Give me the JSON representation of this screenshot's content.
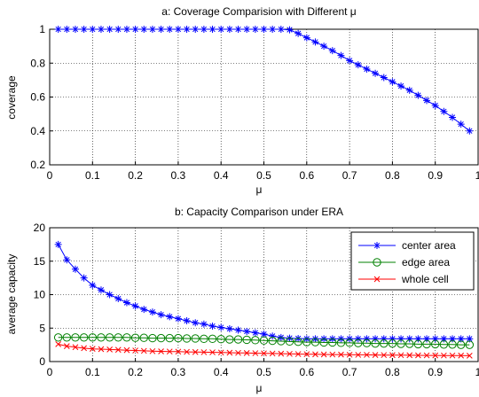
{
  "chart_data": [
    {
      "type": "line",
      "title": "a: Coverage Comparision with Different μ",
      "xlabel": "μ",
      "ylabel": "coverage",
      "xlim": [
        0,
        1
      ],
      "ylim": [
        0.2,
        1
      ],
      "xticks": [
        "0",
        "0.1",
        "0.2",
        "0.3",
        "0.4",
        "0.5",
        "0.6",
        "0.7",
        "0.8",
        "0.9",
        "1"
      ],
      "yticks": [
        "0.2",
        "0.4",
        "0.6",
        "0.8",
        "1"
      ],
      "xtick_values": [
        0,
        0.1,
        0.2,
        0.3,
        0.4,
        0.5,
        0.6,
        0.7,
        0.8,
        0.9,
        1
      ],
      "ytick_values": [
        0.2,
        0.4,
        0.6,
        0.8,
        1
      ],
      "grid": true,
      "series": [
        {
          "color": "#0000ff",
          "marker": "asterisk",
          "x": [
            0.02,
            0.04,
            0.06,
            0.08,
            0.1,
            0.12,
            0.14,
            0.16,
            0.18,
            0.2,
            0.22,
            0.24,
            0.26,
            0.28,
            0.3,
            0.32,
            0.34,
            0.36,
            0.38,
            0.4,
            0.42,
            0.44,
            0.46,
            0.48,
            0.5,
            0.52,
            0.54,
            0.56,
            0.58,
            0.6,
            0.62,
            0.64,
            0.66,
            0.68,
            0.7,
            0.72,
            0.74,
            0.76,
            0.78,
            0.8,
            0.82,
            0.84,
            0.86,
            0.88,
            0.9,
            0.92,
            0.94,
            0.96,
            0.98
          ],
          "y": [
            1,
            1,
            1,
            1,
            1,
            1,
            1,
            1,
            1,
            1,
            1,
            1,
            1,
            1,
            1,
            1,
            1,
            1,
            1,
            1,
            1,
            1,
            1,
            1,
            1,
            1,
            1,
            0.997,
            0.975,
            0.95,
            0.925,
            0.9,
            0.874,
            0.845,
            0.815,
            0.79,
            0.765,
            0.74,
            0.715,
            0.69,
            0.665,
            0.64,
            0.61,
            0.58,
            0.55,
            0.515,
            0.48,
            0.44,
            0.4
          ]
        }
      ]
    },
    {
      "type": "line",
      "title": "b: Capacity Comparison under ERA",
      "xlabel": "μ",
      "ylabel": "average capacity",
      "xlim": [
        0,
        1
      ],
      "ylim": [
        0,
        20
      ],
      "xticks": [
        "0",
        "0.1",
        "0.2",
        "0.3",
        "0.4",
        "0.5",
        "0.6",
        "0.7",
        "0.8",
        "0.9",
        "1"
      ],
      "yticks": [
        "0",
        "5",
        "10",
        "15",
        "20"
      ],
      "xtick_values": [
        0,
        0.1,
        0.2,
        0.3,
        0.4,
        0.5,
        0.6,
        0.7,
        0.8,
        0.9,
        1
      ],
      "ytick_values": [
        0,
        5,
        10,
        15,
        20
      ],
      "grid": true,
      "legend_position": "top-right",
      "series": [
        {
          "name": "center area",
          "color": "#0000ff",
          "marker": "asterisk",
          "x": [
            0.02,
            0.04,
            0.06,
            0.08,
            0.1,
            0.12,
            0.14,
            0.16,
            0.18,
            0.2,
            0.22,
            0.24,
            0.26,
            0.28,
            0.3,
            0.32,
            0.34,
            0.36,
            0.38,
            0.4,
            0.42,
            0.44,
            0.46,
            0.48,
            0.5,
            0.52,
            0.54,
            0.56,
            0.58,
            0.6,
            0.62,
            0.64,
            0.66,
            0.68,
            0.7,
            0.72,
            0.74,
            0.76,
            0.78,
            0.8,
            0.82,
            0.84,
            0.86,
            0.88,
            0.9,
            0.92,
            0.94,
            0.96,
            0.98
          ],
          "y": [
            17.5,
            15.2,
            13.8,
            12.5,
            11.4,
            10.7,
            10.0,
            9.4,
            8.8,
            8.3,
            7.8,
            7.4,
            7.0,
            6.7,
            6.4,
            6.1,
            5.8,
            5.6,
            5.3,
            5.1,
            4.9,
            4.7,
            4.5,
            4.3,
            4.1,
            3.8,
            3.6,
            3.5,
            3.45,
            3.4,
            3.4,
            3.4,
            3.4,
            3.4,
            3.4,
            3.4,
            3.4,
            3.4,
            3.4,
            3.4,
            3.4,
            3.4,
            3.4,
            3.4,
            3.4,
            3.4,
            3.4,
            3.4,
            3.4
          ]
        },
        {
          "name": "edge area",
          "color": "#008000",
          "marker": "circle",
          "x": [
            0.02,
            0.04,
            0.06,
            0.08,
            0.1,
            0.12,
            0.14,
            0.16,
            0.18,
            0.2,
            0.22,
            0.24,
            0.26,
            0.28,
            0.3,
            0.32,
            0.34,
            0.36,
            0.38,
            0.4,
            0.42,
            0.44,
            0.46,
            0.48,
            0.5,
            0.52,
            0.54,
            0.56,
            0.58,
            0.6,
            0.62,
            0.64,
            0.66,
            0.68,
            0.7,
            0.72,
            0.74,
            0.76,
            0.78,
            0.8,
            0.82,
            0.84,
            0.86,
            0.88,
            0.9,
            0.92,
            0.94,
            0.96,
            0.98
          ],
          "y": [
            3.6,
            3.6,
            3.6,
            3.6,
            3.6,
            3.6,
            3.6,
            3.6,
            3.6,
            3.55,
            3.55,
            3.5,
            3.5,
            3.5,
            3.5,
            3.45,
            3.45,
            3.4,
            3.4,
            3.35,
            3.3,
            3.3,
            3.25,
            3.2,
            3.15,
            3.1,
            3.05,
            3.0,
            2.95,
            2.9,
            2.9,
            2.85,
            2.85,
            2.8,
            2.8,
            2.75,
            2.75,
            2.7,
            2.7,
            2.7,
            2.65,
            2.65,
            2.6,
            2.6,
            2.6,
            2.55,
            2.55,
            2.5,
            2.5
          ]
        },
        {
          "name": "whole cell",
          "color": "#ff0000",
          "marker": "cross",
          "x": [
            0.02,
            0.04,
            0.06,
            0.08,
            0.1,
            0.12,
            0.14,
            0.16,
            0.18,
            0.2,
            0.22,
            0.24,
            0.26,
            0.28,
            0.3,
            0.32,
            0.34,
            0.36,
            0.38,
            0.4,
            0.42,
            0.44,
            0.46,
            0.48,
            0.5,
            0.52,
            0.54,
            0.56,
            0.58,
            0.6,
            0.62,
            0.64,
            0.66,
            0.68,
            0.7,
            0.72,
            0.74,
            0.76,
            0.78,
            0.8,
            0.82,
            0.84,
            0.86,
            0.88,
            0.9,
            0.92,
            0.94,
            0.96,
            0.98
          ],
          "y": [
            2.6,
            2.3,
            2.15,
            2.0,
            1.9,
            1.85,
            1.8,
            1.75,
            1.7,
            1.65,
            1.6,
            1.55,
            1.52,
            1.5,
            1.48,
            1.45,
            1.42,
            1.4,
            1.38,
            1.35,
            1.32,
            1.3,
            1.28,
            1.25,
            1.22,
            1.2,
            1.18,
            1.15,
            1.12,
            1.1,
            1.08,
            1.06,
            1.05,
            1.04,
            1.02,
            1.0,
            1.0,
            0.98,
            0.97,
            0.96,
            0.95,
            0.94,
            0.93,
            0.92,
            0.91,
            0.9,
            0.9,
            0.89,
            0.88
          ]
        }
      ]
    }
  ]
}
